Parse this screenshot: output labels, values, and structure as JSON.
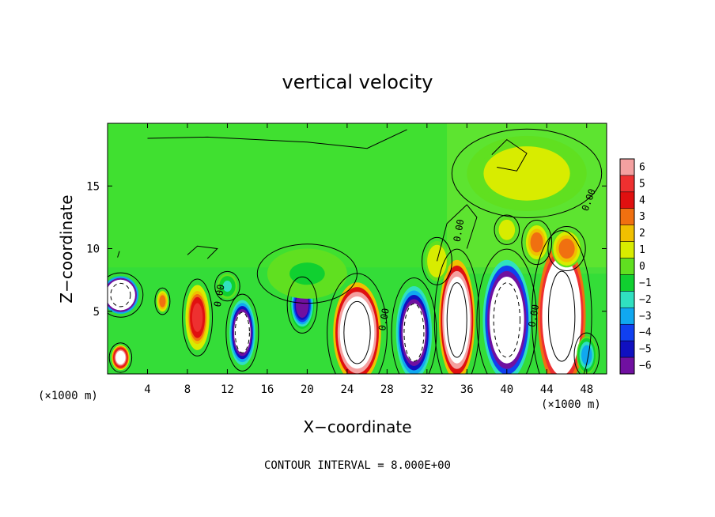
{
  "chart_data": {
    "type": "heatmap",
    "title": "vertical velocity",
    "xlabel": "X−coordinate",
    "ylabel": "Z−coordinate",
    "x_unit_left": "(×1000 m)",
    "x_unit_right": "(×1000 m)",
    "footer": "CONTOUR INTERVAL = 8.000E+00",
    "xlim": [
      0,
      50
    ],
    "ylim": [
      0,
      20
    ],
    "x_ticks": [
      4,
      8,
      12,
      16,
      20,
      24,
      28,
      32,
      36,
      40,
      44,
      48
    ],
    "x_tick_labels": [
      "4",
      "8",
      "12",
      "16",
      "20",
      "24",
      "28",
      "32",
      "36",
      "40",
      "44",
      "48"
    ],
    "y_ticks": [
      5,
      10,
      15
    ],
    "y_tick_labels": [
      "5",
      "10",
      "15"
    ],
    "colorbar": {
      "levels": [
        6,
        5,
        4,
        3,
        2,
        1,
        0,
        -1,
        -2,
        -3,
        -4,
        -5,
        -6
      ],
      "labels": [
        "6",
        "5",
        "4",
        "3",
        "2",
        "1",
        "0",
        "−1",
        "−2",
        "−3",
        "−4",
        "−5",
        "−6"
      ],
      "colors": [
        "#f4a0a0",
        "#ee3030",
        "#e01010",
        "#f07010",
        "#f0c000",
        "#d8ec00",
        "#60e020",
        "#10d030",
        "#30e0c0",
        "#10a8f0",
        "#1040f0",
        "#1010c0",
        "#7010a0"
      ],
      "background": "#40e030",
      "saturated": "#ffffff"
    },
    "contour_labels": [
      {
        "text": "0.00",
        "x": 11.5,
        "z": 6.2,
        "rotate": -80
      },
      {
        "text": "0.00",
        "x": 28.0,
        "z": 4.3,
        "rotate": -80
      },
      {
        "text": "0.00",
        "x": 35.5,
        "z": 11.4,
        "rotate": -80
      },
      {
        "text": "0.00",
        "x": 43.0,
        "z": 4.6,
        "rotate": -80
      },
      {
        "text": "0.00",
        "x": 48.5,
        "z": 13.8,
        "rotate": -70
      }
    ],
    "cells": [
      {
        "x": 1.3,
        "z": 6.3,
        "rx": 1.8,
        "rz": 1.5,
        "w": -20
      },
      {
        "x": 1.3,
        "z": 1.3,
        "rx": 0.9,
        "rz": 1.0,
        "w": 9
      },
      {
        "x": 5.5,
        "z": 5.8,
        "rx": 0.6,
        "rz": 0.9,
        "w": 3
      },
      {
        "x": 9.0,
        "z": 4.5,
        "rx": 1.2,
        "rz": 2.6,
        "w": 5
      },
      {
        "x": 13.5,
        "z": 3.3,
        "rx": 1.3,
        "rz": 2.6,
        "w": -11
      },
      {
        "x": 19.5,
        "z": 5.5,
        "rx": 1.2,
        "rz": 1.9,
        "w": -7
      },
      {
        "x": 25.0,
        "z": 3.3,
        "rx": 2.4,
        "rz": 4.0,
        "w": 14
      },
      {
        "x": 30.7,
        "z": 3.3,
        "rx": 1.8,
        "rz": 3.7,
        "w": -11
      },
      {
        "x": 35.0,
        "z": 4.3,
        "rx": 1.8,
        "rz": 4.8,
        "w": 14
      },
      {
        "x": 40.0,
        "z": 4.3,
        "rx": 2.4,
        "rz": 4.8,
        "w": -13
      },
      {
        "x": 45.5,
        "z": 4.6,
        "rx": 2.4,
        "rz": 5.8,
        "w": 17
      },
      {
        "x": 48.0,
        "z": 1.5,
        "rx": 1.0,
        "rz": 1.5,
        "w": -3
      },
      {
        "x": 43.0,
        "z": 10.5,
        "rx": 1.2,
        "rz": 1.5,
        "w": 3
      },
      {
        "x": 46.0,
        "z": 10.0,
        "rx": 1.5,
        "rz": 1.5,
        "w": 3
      },
      {
        "x": 40.0,
        "z": 11.5,
        "rx": 1.0,
        "rz": 1.0,
        "w": 1.5
      },
      {
        "x": 33.0,
        "z": 9.0,
        "rx": 1.2,
        "rz": 1.6,
        "w": 1.5
      },
      {
        "x": 12.0,
        "z": 7.0,
        "rx": 1.0,
        "rz": 1.0,
        "w": -1.5
      },
      {
        "x": 42.0,
        "z": 16.0,
        "rx": 6.0,
        "rz": 3.0,
        "w": 1.0
      },
      {
        "x": 20.0,
        "z": 8.0,
        "rx": 4.0,
        "rz": 2.0,
        "w": -0.5
      }
    ],
    "extra_contours": [
      [
        [
          33,
          9
        ],
        [
          34,
          12
        ],
        [
          36,
          13.5
        ],
        [
          37,
          12.5
        ],
        [
          36,
          10
        ]
      ],
      [
        [
          8,
          9.5
        ],
        [
          9,
          10.2
        ],
        [
          11,
          10
        ],
        [
          10,
          9.2
        ]
      ],
      [
        [
          38.5,
          17.5
        ],
        [
          40,
          18.7
        ],
        [
          42,
          17.6
        ],
        [
          41,
          16.2
        ],
        [
          39,
          16.5
        ]
      ],
      [
        [
          4.0,
          18.8
        ],
        [
          10.0,
          18.9
        ],
        [
          20.0,
          18.5
        ],
        [
          26.0,
          18.0
        ],
        [
          30.0,
          19.5
        ]
      ],
      [
        [
          1.0,
          9.3
        ],
        [
          1.2,
          9.8
        ]
      ]
    ]
  }
}
